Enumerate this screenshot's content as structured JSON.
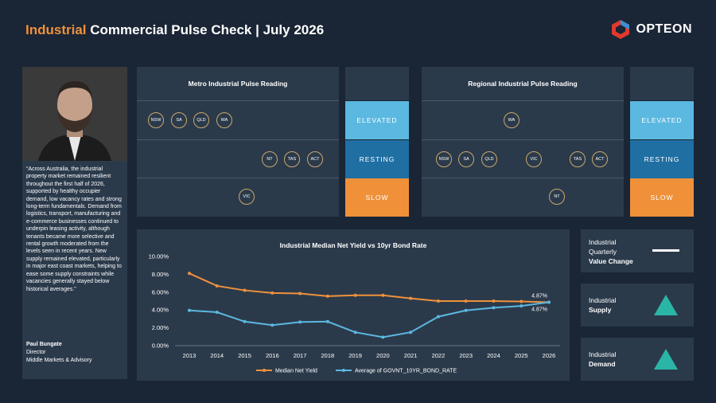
{
  "header": {
    "title_accent": "Industrial",
    "title_rest": " Commercial Pulse Check | July 2026",
    "logo_text": "OPTEON"
  },
  "profile": {
    "quote": "“Across Australia, the industrial property market remained resilient throughout the first half of 2026, supported by healthy occupier demand, low vacancy rates and strong long-term fundamentals. Demand from logistics, transport, manufacturing and e-commerce businesses continued to underpin leasing activity, although tenants became more selective and rental growth moderated from the levels seen in recent years. New supply remained elevated, particularly in major east coast markets, helping to ease some supply constraints while vacancies generally stayed below historical averages.”",
    "name": "Paul Bungate",
    "role": "Director",
    "team": "Middle Markets & Advisory"
  },
  "metro": {
    "heading": "Metro Industrial Pulse Reading",
    "elevated": [
      "NSW",
      "SA",
      "QLD",
      "WA"
    ],
    "resting": [
      "NT",
      "TAS",
      "ACT"
    ],
    "slow": [
      "VIC"
    ]
  },
  "regional": {
    "heading": "Regional Industrial Pulse Reading",
    "elevated": [
      "WA"
    ],
    "resting": [
      "NSW",
      "SA",
      "QLD",
      "VIC",
      "TAS",
      "ACT"
    ],
    "slow": [
      "NT"
    ]
  },
  "levels": {
    "elevated": "ELEVATED",
    "resting": "RESTING",
    "slow": "SLOW",
    "colors": {
      "elevated": "#5bb8e0",
      "resting": "#1f6fa3",
      "slow": "#f0913a"
    }
  },
  "indicators": {
    "value_change": {
      "line1": "Industrial",
      "line2": "Quarterly",
      "line3": "Value Change",
      "trend": "flat"
    },
    "supply": {
      "line1": "Industrial",
      "line2": "Supply",
      "trend": "up"
    },
    "demand": {
      "line1": "Industrial",
      "line2": "Demand",
      "trend": "up"
    },
    "trend_color": "#2bb5a6"
  },
  "chart_data": {
    "type": "line",
    "title": "Industrial Median Net Yield vs 10yr Bond Rate",
    "x": [
      "2013",
      "2014",
      "2015",
      "2016",
      "2017",
      "2018",
      "2019",
      "2020",
      "2021",
      "2022",
      "2023",
      "2024",
      "2025",
      "2026"
    ],
    "ylim": [
      0,
      10
    ],
    "yticks": [
      "0.00%",
      "2.00%",
      "4.00%",
      "6.00%",
      "8.00%",
      "10.00%"
    ],
    "series": [
      {
        "name": "Median Net Yield",
        "color": "#f0913a",
        "values": [
          8.1,
          6.7,
          6.2,
          5.9,
          5.85,
          5.55,
          5.65,
          5.65,
          5.3,
          5.0,
          5.0,
          5.0,
          4.95,
          4.87
        ]
      },
      {
        "name": "Average of GOVNT_10YR_BOND_RATE",
        "color": "#5bb8e0",
        "values": [
          3.95,
          3.75,
          2.7,
          2.3,
          2.65,
          2.7,
          1.5,
          0.95,
          1.5,
          3.25,
          3.95,
          4.25,
          4.45,
          4.87
        ]
      }
    ],
    "end_labels": [
      "4.87%",
      "4.87%"
    ],
    "legend_position": "bottom",
    "grid": false
  }
}
